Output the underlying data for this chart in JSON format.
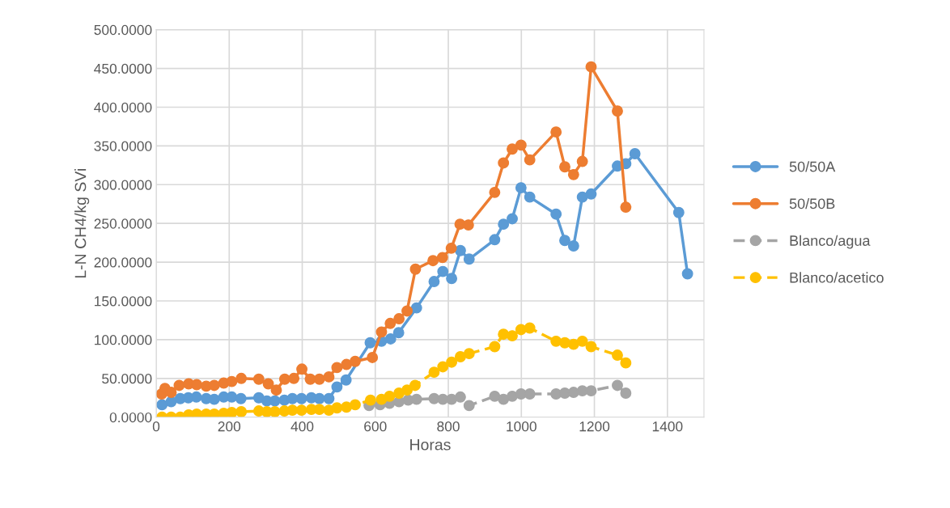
{
  "chart_data": {
    "type": "line",
    "xlabel": "Horas",
    "ylabel": "L-N CH4/kg SVi",
    "xlim": [
      0,
      1500
    ],
    "xticks": [
      0,
      200,
      400,
      600,
      800,
      1000,
      1200,
      1400
    ],
    "ylim": [
      0,
      500
    ],
    "yticks": [
      {
        "value": 0,
        "label": "0.0000"
      },
      {
        "value": 50,
        "label": "50.0000"
      },
      {
        "value": 100,
        "label": "100.0000"
      },
      {
        "value": 150,
        "label": "150.0000"
      },
      {
        "value": 200,
        "label": "200.0000"
      },
      {
        "value": 250,
        "label": "250.0000"
      },
      {
        "value": 300,
        "label": "300.0000"
      },
      {
        "value": 350,
        "label": "350.0000"
      },
      {
        "value": 400,
        "label": "400.0000"
      },
      {
        "value": 450,
        "label": "450.0000"
      },
      {
        "value": 500,
        "label": "500.0000"
      }
    ],
    "grid": true,
    "legend": "right",
    "marker": "circle",
    "series": [
      {
        "name": "50/50A",
        "color": "#5b9bd5",
        "line_style": "solid",
        "x": [
          16,
          41,
          66,
          88,
          110,
          137,
          159,
          185,
          207,
          232,
          281,
          303,
          325,
          351,
          373,
          398,
          425,
          447,
          473,
          495,
          520,
          586,
          617,
          642,
          664,
          713,
          761,
          785,
          809,
          833,
          857,
          927,
          951,
          975,
          999,
          1023,
          1095,
          1119,
          1143,
          1167,
          1191,
          1263,
          1286,
          1311,
          1431,
          1455
        ],
        "values": [
          16,
          20,
          24,
          25,
          26,
          24,
          23,
          26,
          26,
          24,
          25,
          21,
          21,
          22,
          24,
          24,
          25,
          24,
          24,
          39,
          48,
          96,
          98,
          101,
          109,
          141,
          175,
          188,
          179,
          215,
          204,
          229,
          249,
          256,
          296,
          284,
          262,
          228,
          221,
          284,
          288,
          324,
          327,
          340,
          264,
          185
        ]
      },
      {
        "name": "50/50B",
        "color": "#ed7d31",
        "line_style": "solid",
        "x": [
          15,
          24,
          41,
          63,
          89,
          111,
          137,
          159,
          185,
          207,
          233,
          281,
          307,
          329,
          352,
          377,
          399,
          422,
          447,
          473,
          495,
          521,
          545,
          592,
          617,
          641,
          665,
          687,
          710,
          758,
          784,
          808,
          832,
          855,
          927,
          951,
          975,
          999,
          1023,
          1095,
          1119,
          1143,
          1167,
          1191,
          1263,
          1286
        ],
        "values": [
          30,
          37,
          32,
          41,
          43,
          42,
          40,
          41,
          44,
          46,
          50,
          49,
          43,
          35,
          49,
          50,
          62,
          49,
          49,
          52,
          64,
          68,
          72,
          77,
          110,
          121,
          127,
          137,
          191,
          202,
          206,
          218,
          249,
          248,
          290,
          328,
          346,
          351,
          332,
          368,
          323,
          313,
          330,
          452,
          395,
          271
        ]
      },
      {
        "name": "Blanco/agua",
        "color": "#a5a5a5",
        "line_style": "dashed",
        "x": [
          583,
          613,
          639,
          665,
          690,
          713,
          761,
          785,
          809,
          833,
          857,
          927,
          951,
          975,
          999,
          1023,
          1095,
          1119,
          1143,
          1167,
          1191,
          1263,
          1286
        ],
        "values": [
          15,
          16,
          18,
          20,
          22,
          23,
          24,
          23,
          23,
          26,
          15,
          27,
          23,
          27,
          30,
          30,
          30,
          31,
          32,
          34,
          34,
          41,
          31
        ]
      },
      {
        "name": "Blanco/acetico",
        "color": "#ffc000",
        "line_style": "dashed",
        "x": [
          16,
          41,
          66,
          89,
          111,
          137,
          159,
          185,
          207,
          233,
          281,
          303,
          325,
          351,
          373,
          398,
          425,
          447,
          473,
          495,
          521,
          545,
          587,
          617,
          639,
          665,
          687,
          709,
          761,
          785,
          809,
          833,
          857,
          927,
          951,
          975,
          999,
          1023,
          1095,
          1119,
          1143,
          1167,
          1191,
          1263,
          1286
        ],
        "values": [
          0,
          0,
          0,
          3,
          4,
          4,
          4,
          5,
          6,
          7,
          8,
          7,
          7,
          8,
          9,
          9,
          10,
          10,
          9,
          12,
          13,
          16,
          22,
          23,
          27,
          31,
          35,
          41,
          58,
          65,
          71,
          78,
          82,
          91,
          107,
          105,
          113,
          115,
          98,
          96,
          94,
          98,
          91,
          80,
          70
        ]
      }
    ]
  }
}
